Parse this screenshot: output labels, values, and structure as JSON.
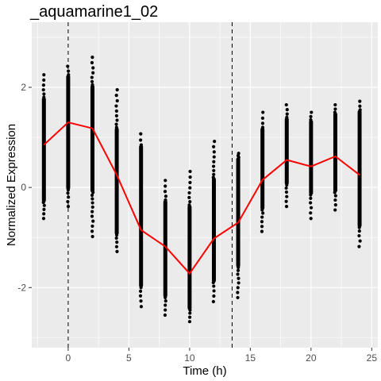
{
  "chart_data": {
    "type": "scatter",
    "title": "_aquamarine1_02",
    "xlabel": "Time (h)",
    "ylabel": "Normalized Expression",
    "xlim": [
      -3,
      25.5
    ],
    "ylim": [
      -3.2,
      3.3
    ],
    "x_ticks": [
      0,
      5,
      10,
      15,
      20,
      25
    ],
    "x_tick_labels": [
      "0",
      "5",
      "10",
      "15",
      "20",
      "25"
    ],
    "y_ticks": [
      -2,
      0,
      2
    ],
    "y_tick_labels": [
      "-2",
      "0",
      "2"
    ],
    "grid": true,
    "vlines": [
      0,
      13.5
    ],
    "points_color": "#000000",
    "line_color": "#ff0000",
    "panel_bg": "#ebebeb",
    "point_spread": [
      {
        "x": -2,
        "min": -0.62,
        "max": 2.25,
        "dense_min": -0.3,
        "dense_max": 1.8
      },
      {
        "x": 0,
        "min": -0.38,
        "max": 2.42,
        "dense_min": -0.05,
        "dense_max": 2.25
      },
      {
        "x": 2,
        "min": -0.98,
        "max": 2.6,
        "dense_min": -0.1,
        "dense_max": 2.05
      },
      {
        "x": 4,
        "min": -1.28,
        "max": 1.95,
        "dense_min": -0.95,
        "dense_max": 1.2
      },
      {
        "x": 6,
        "min": -2.38,
        "max": 1.07,
        "dense_min": -2.0,
        "dense_max": 0.85
      },
      {
        "x": 8,
        "min": -2.55,
        "max": 0.14,
        "dense_min": -2.2,
        "dense_max": -0.25
      },
      {
        "x": 10,
        "min": -2.68,
        "max": 0.32,
        "dense_min": -2.45,
        "dense_max": -0.35
      },
      {
        "x": 12,
        "min": -2.28,
        "max": 0.92,
        "dense_min": -1.9,
        "dense_max": 0.2
      },
      {
        "x": 14,
        "min": -2.2,
        "max": 0.68,
        "dense_min": -1.6,
        "dense_max": 0.6
      },
      {
        "x": 16,
        "min": -0.88,
        "max": 1.5,
        "dense_min": -0.45,
        "dense_max": 1.2
      },
      {
        "x": 18,
        "min": -0.38,
        "max": 1.65,
        "dense_min": 0.05,
        "dense_max": 1.4
      },
      {
        "x": 20,
        "min": -0.62,
        "max": 1.5,
        "dense_min": -0.15,
        "dense_max": 1.35
      },
      {
        "x": 22,
        "min": -0.45,
        "max": 1.65,
        "dense_min": -0.1,
        "dense_max": 1.5
      },
      {
        "x": 24,
        "min": -1.18,
        "max": 1.72,
        "dense_min": -0.8,
        "dense_max": 1.55
      }
    ],
    "series": [
      {
        "x": [
          -2,
          0,
          2,
          4,
          6,
          8,
          10,
          12,
          14,
          16,
          18,
          20,
          22,
          24
        ],
        "values": [
          0.85,
          1.3,
          1.18,
          0.25,
          -0.85,
          -1.18,
          -1.72,
          -1.02,
          -0.7,
          0.15,
          0.55,
          0.42,
          0.62,
          0.25
        ]
      }
    ]
  }
}
